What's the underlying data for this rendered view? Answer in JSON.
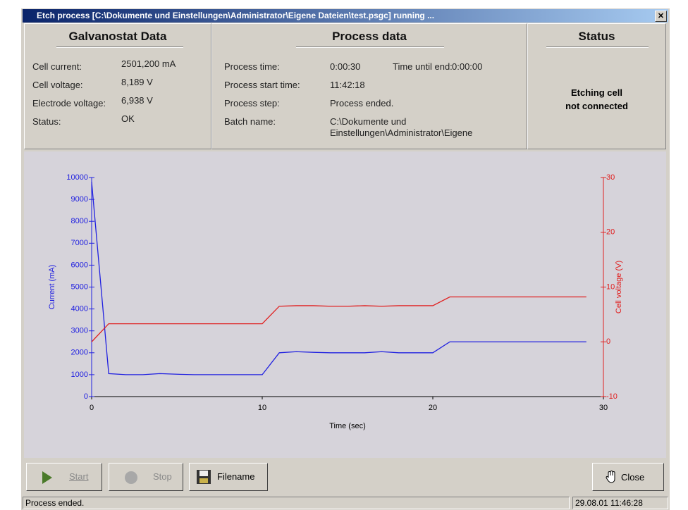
{
  "window": {
    "title": "Etch process [C:\\Dokumente und Einstellungen\\Administrator\\Eigene Dateien\\test.psgc] running ..."
  },
  "galvanostat": {
    "title": "Galvanostat Data",
    "rows": [
      [
        "Cell current:",
        "2501,200 mA"
      ],
      [
        "Cell voltage:",
        "8,189 V"
      ],
      [
        "Electrode voltage:",
        "6,938 V"
      ],
      [
        "Status:",
        "OK"
      ]
    ]
  },
  "process": {
    "title": "Process data",
    "rows": [
      [
        "Process time:",
        "0:00:30",
        "Time until end:",
        "0:00:00"
      ],
      [
        "Process start time:",
        "11:42:18"
      ],
      [
        "Process step:",
        "Process ended."
      ],
      [
        "Batch name:",
        "C:\\Dokumente und Einstellungen\\Administrator\\Eigene"
      ]
    ]
  },
  "status": {
    "title": "Status",
    "message": [
      "Etching cell",
      "not connected"
    ]
  },
  "buttons": {
    "start": "Start",
    "stop": "Stop",
    "filename": "Filename",
    "close": "Close"
  },
  "statusbar": {
    "message": "Process ended.",
    "datetime": "29.08.01 11:46:28"
  },
  "chart_data": {
    "type": "line",
    "xlabel": "Time (sec)",
    "ylabel": "Current (mA)",
    "y2label": "Cell voltage (V)",
    "x": [
      0,
      1,
      2,
      3,
      4,
      5,
      6,
      7,
      8,
      9,
      10,
      11,
      12,
      13,
      14,
      15,
      16,
      17,
      18,
      19,
      20,
      21,
      22,
      23,
      24,
      25,
      26,
      27,
      28,
      29
    ],
    "series": [
      {
        "color": "#2020e0",
        "axis": "y",
        "values": [
          9800,
          1050,
          1000,
          1000,
          1050,
          1020,
          1000,
          1000,
          1000,
          1000,
          1000,
          2000,
          2050,
          2020,
          2000,
          2000,
          2000,
          2050,
          2000,
          2000,
          2000,
          2500,
          2500,
          2500,
          2500,
          2500,
          2500,
          2500,
          2500,
          2500
        ]
      },
      {
        "color": "#e02020",
        "axis": "y2",
        "values": [
          0,
          3.3,
          3.3,
          3.3,
          3.3,
          3.3,
          3.3,
          3.3,
          3.3,
          3.3,
          3.3,
          6.5,
          6.6,
          6.6,
          6.5,
          6.5,
          6.6,
          6.5,
          6.6,
          6.6,
          6.6,
          8.2,
          8.2,
          8.2,
          8.2,
          8.2,
          8.2,
          8.2,
          8.2,
          8.2
        ]
      }
    ],
    "xlim": [
      0,
      30
    ],
    "xticks": [
      0,
      10,
      20,
      30
    ],
    "ylim": [
      0,
      10000
    ],
    "yticks": [
      0,
      1000,
      2000,
      3000,
      4000,
      5000,
      6000,
      7000,
      8000,
      9000,
      10000
    ],
    "y2lim": [
      -10,
      30
    ],
    "y2ticks": [
      -10,
      0,
      10,
      20,
      30
    ]
  }
}
